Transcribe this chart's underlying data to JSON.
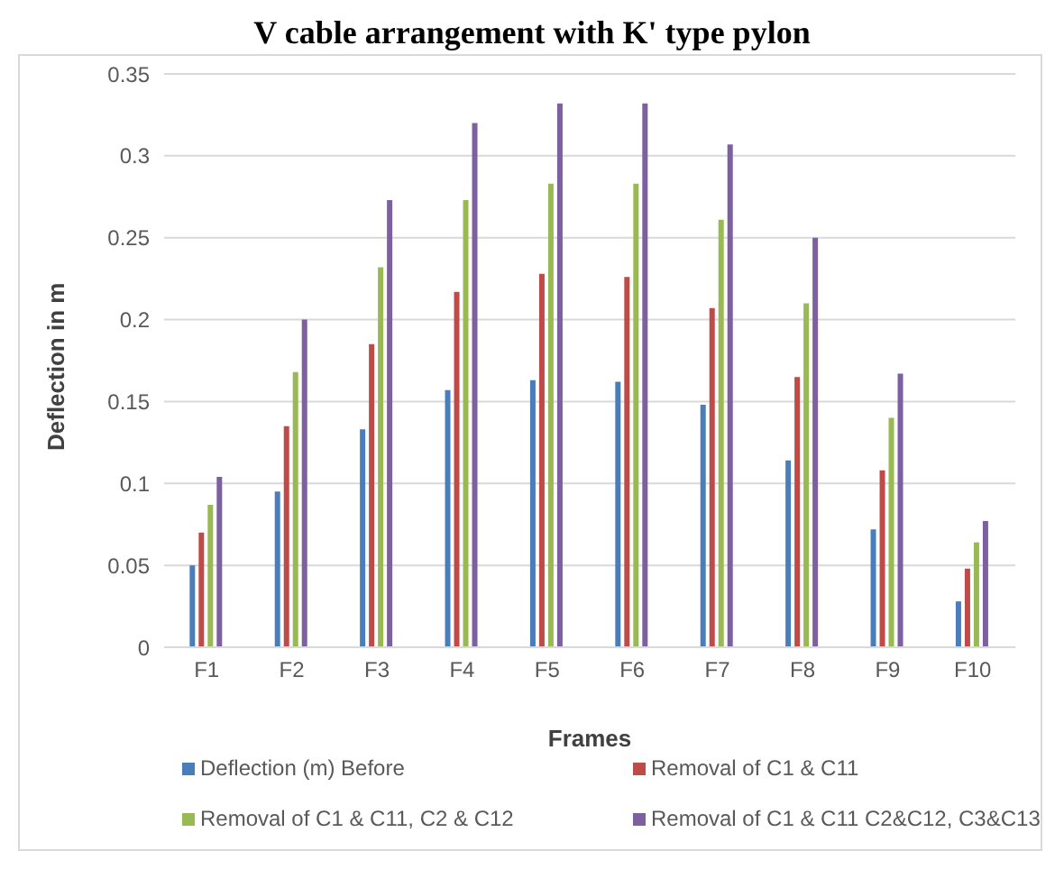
{
  "chart_data": {
    "type": "bar",
    "title": "V cable arrangement with K' type pylon",
    "xlabel": "Frames",
    "ylabel": "Deflection in m",
    "categories": [
      "F1",
      "F2",
      "F3",
      "F4",
      "F5",
      "F6",
      "F7",
      "F8",
      "F9",
      "F10"
    ],
    "series": [
      {
        "name": "Deflection (m) Before",
        "color": "#4a7ebb",
        "values": [
          0.05,
          0.095,
          0.133,
          0.157,
          0.163,
          0.162,
          0.148,
          0.114,
          0.072,
          0.028
        ]
      },
      {
        "name": "Removal of C1 & C11",
        "color": "#be4b48",
        "values": [
          0.07,
          0.135,
          0.185,
          0.217,
          0.228,
          0.226,
          0.207,
          0.165,
          0.108,
          0.048
        ]
      },
      {
        "name": "Removal of C1 & C11, C2 & C12",
        "color": "#98b954",
        "values": [
          0.087,
          0.168,
          0.232,
          0.273,
          0.283,
          0.283,
          0.261,
          0.21,
          0.14,
          0.064
        ]
      },
      {
        "name": "Removal of C1 & C11 C2&C12, C3&C13",
        "color": "#7d60a0",
        "values": [
          0.104,
          0.2,
          0.273,
          0.32,
          0.332,
          0.332,
          0.307,
          0.25,
          0.167,
          0.077
        ]
      }
    ],
    "ylim": [
      0,
      0.35
    ],
    "yticks": [
      0,
      0.05,
      0.1,
      0.15,
      0.2,
      0.25,
      0.3,
      0.35
    ],
    "grid": "y",
    "legend": "bottom"
  }
}
